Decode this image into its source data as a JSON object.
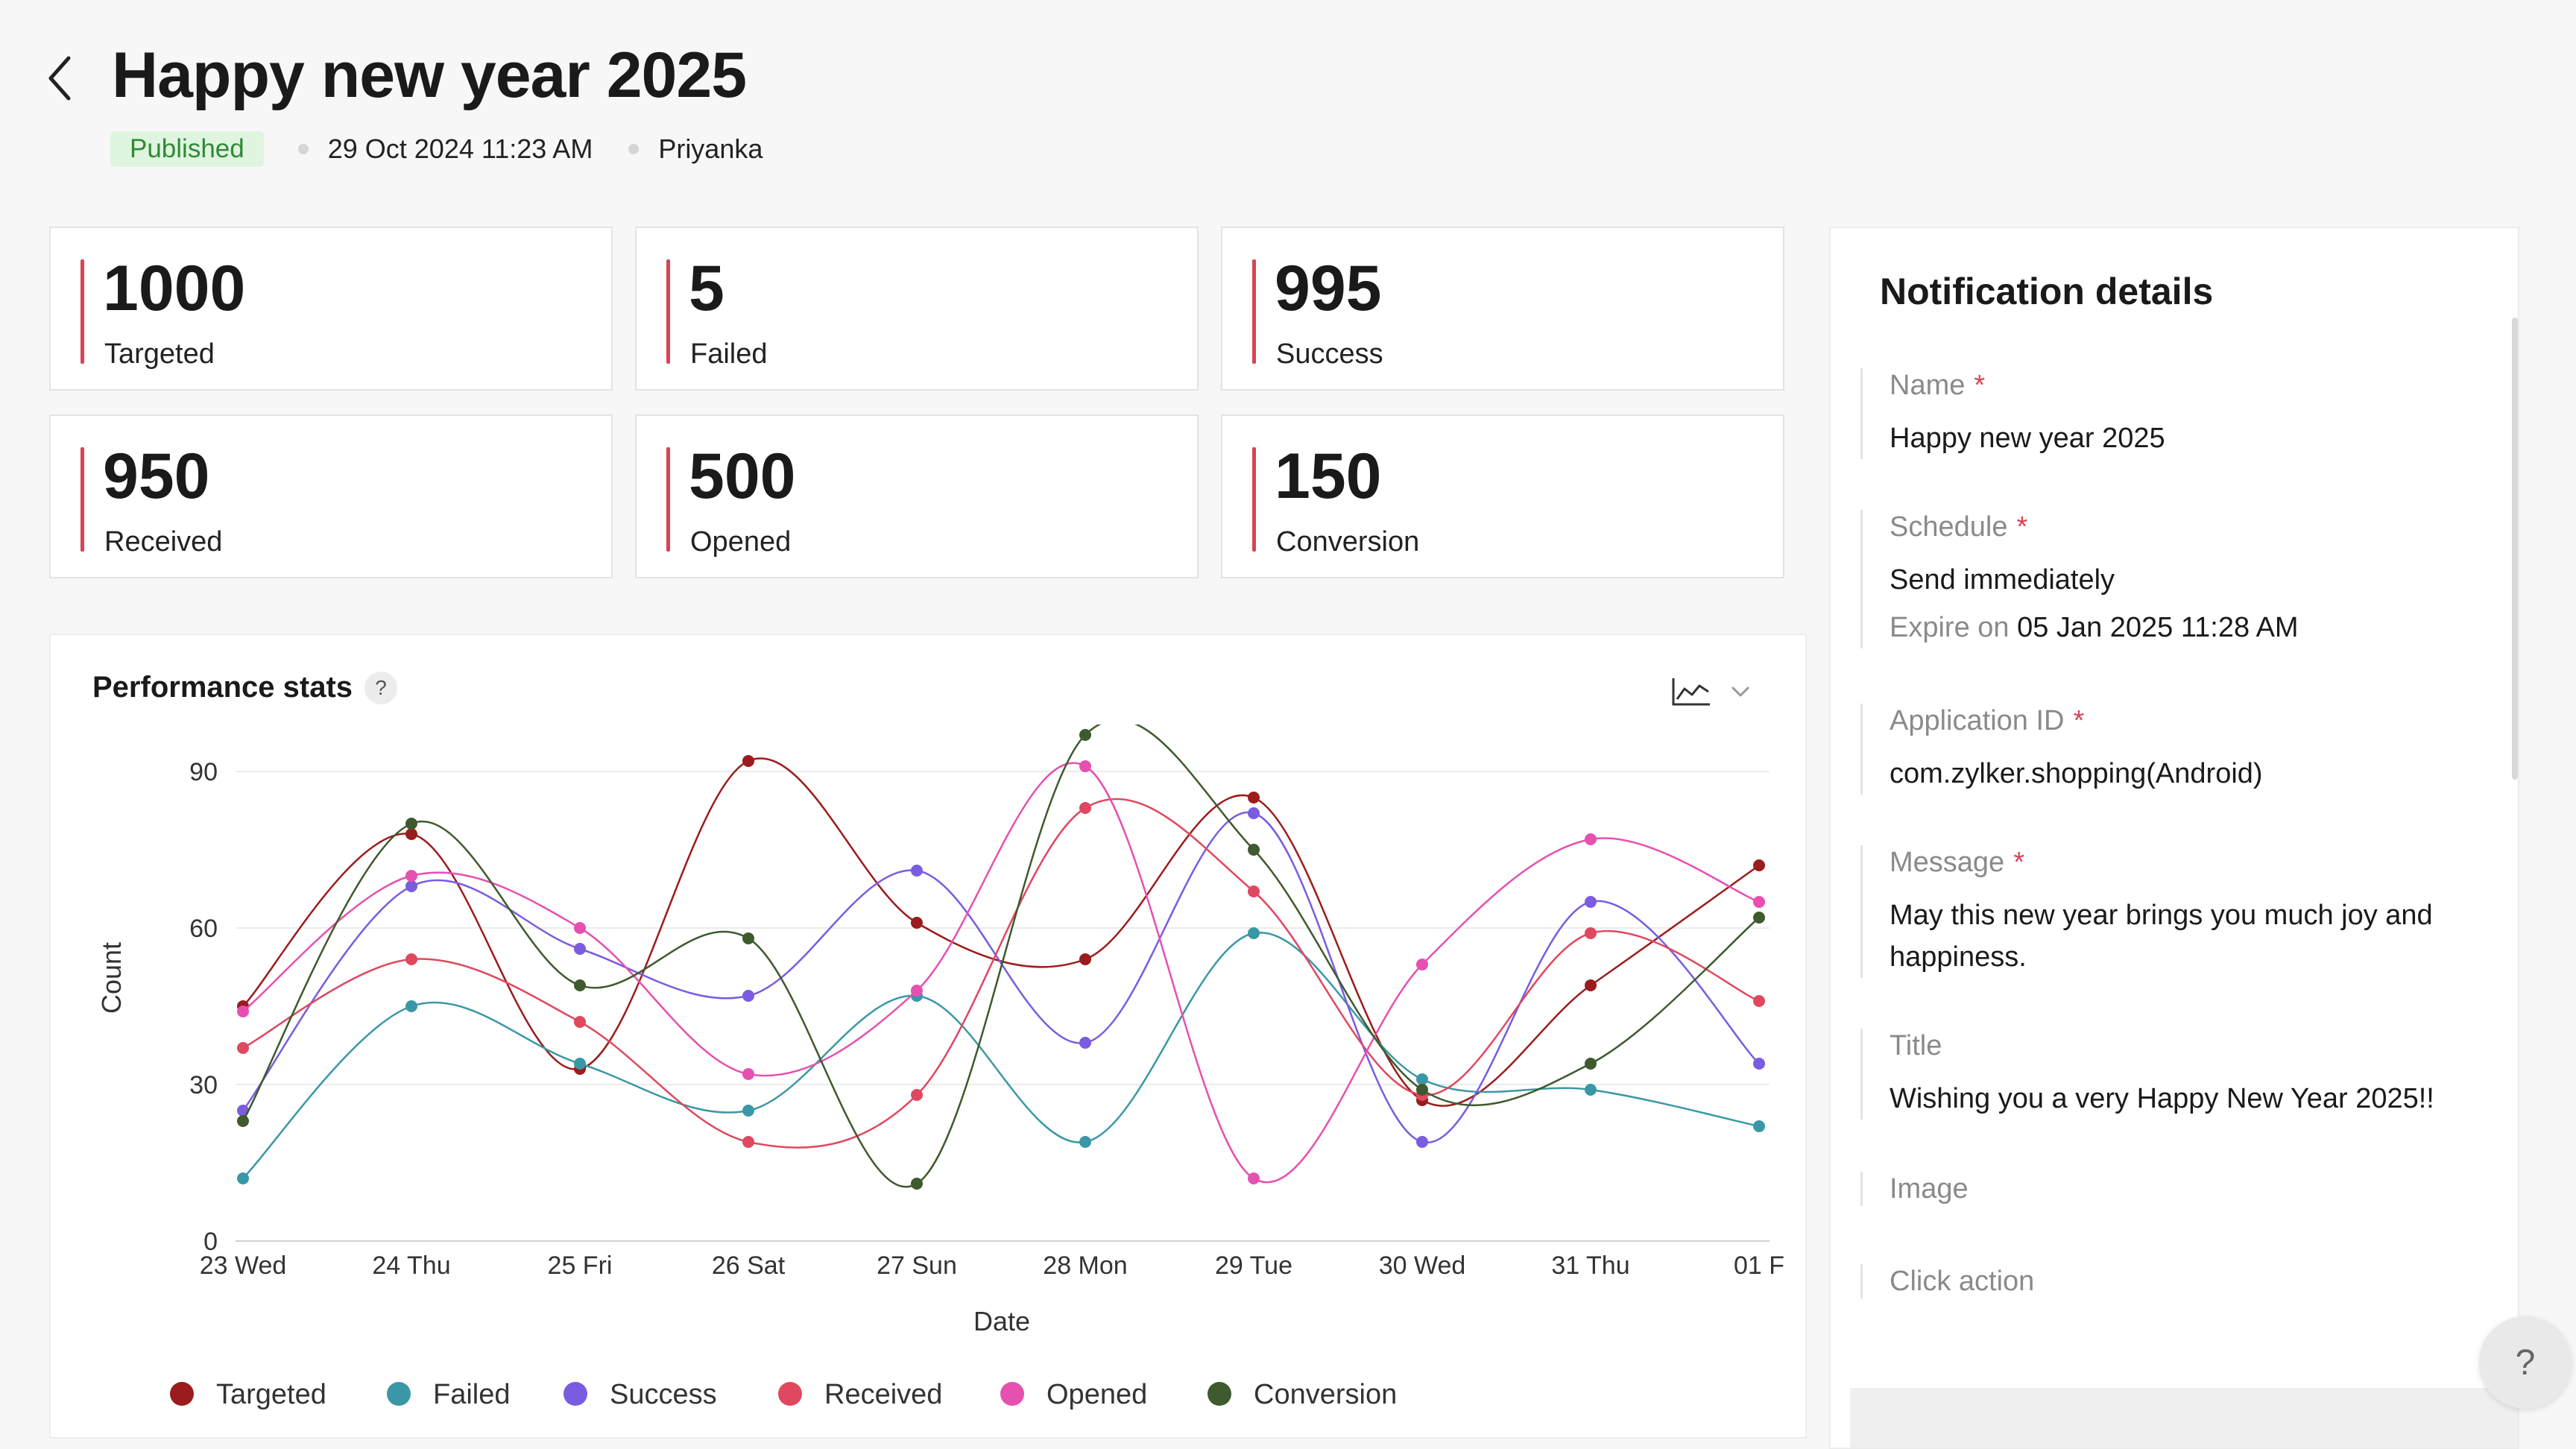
{
  "header": {
    "title": "Happy new year 2025",
    "status": "Published",
    "date": "29 Oct 2024 11:23 AM",
    "author": "Priyanka"
  },
  "stats": [
    {
      "value": "1000",
      "label": "Targeted"
    },
    {
      "value": "5",
      "label": "Failed"
    },
    {
      "value": "995",
      "label": "Success"
    },
    {
      "value": "950",
      "label": "Received"
    },
    {
      "value": "500",
      "label": "Opened"
    },
    {
      "value": "150",
      "label": "Conversion"
    }
  ],
  "performance": {
    "title": "Performance stats",
    "help": "?"
  },
  "chart_data": {
    "type": "line",
    "xlabel": "Date",
    "ylabel": "Count",
    "ylim": [
      0,
      90
    ],
    "yticks": [
      0,
      30,
      60,
      90
    ],
    "categories": [
      "23 Wed",
      "24 Thu",
      "25 Fri",
      "26 Sat",
      "27 Sun",
      "28 Mon",
      "29 Tue",
      "30 Wed",
      "31 Thu",
      "01 F"
    ],
    "grid": true,
    "legend": "bottom",
    "series": [
      {
        "name": "Targeted",
        "color": "#9b1c1c",
        "values": [
          45,
          78,
          33,
          92,
          61,
          54,
          85,
          27,
          49,
          72
        ]
      },
      {
        "name": "Failed",
        "color": "#3a98a6",
        "values": [
          12,
          45,
          34,
          25,
          47,
          19,
          59,
          31,
          29,
          22
        ]
      },
      {
        "name": "Success",
        "color": "#7a5ce0",
        "values": [
          25,
          68,
          56,
          47,
          71,
          38,
          82,
          19,
          65,
          34
        ]
      },
      {
        "name": "Received",
        "color": "#e0485f",
        "values": [
          37,
          54,
          42,
          19,
          28,
          83,
          67,
          28,
          59,
          46
        ]
      },
      {
        "name": "Opened",
        "color": "#e650b0",
        "values": [
          44,
          70,
          60,
          32,
          48,
          91,
          12,
          53,
          77,
          65
        ]
      },
      {
        "name": "Conversion",
        "color": "#3e5a2e",
        "values": [
          23,
          80,
          49,
          58,
          11,
          97,
          75,
          29,
          34,
          62
        ]
      }
    ]
  },
  "notification": {
    "title": "Notification details",
    "name_label": "Name",
    "name_value": "Happy new year 2025",
    "schedule_label": "Schedule",
    "schedule_value": "Send immediately",
    "expire_label": "Expire on",
    "expire_value": "05 Jan 2025 11:28 AM",
    "appid_label": "Application ID",
    "appid_value": "com.zylker.shopping(Android)",
    "message_label": "Message",
    "message_value": "May this new year brings you much joy and happiness.",
    "title_label": "Title",
    "title_value": "Wishing you a very Happy New Year 2025!!",
    "image_label": "Image",
    "click_label": "Click action",
    "required_mark": "*"
  },
  "help_fab": "?",
  "icons": {
    "back": "chevron-left-icon",
    "chart_type": "line-chart-icon",
    "dropdown": "chevron-down-icon"
  }
}
